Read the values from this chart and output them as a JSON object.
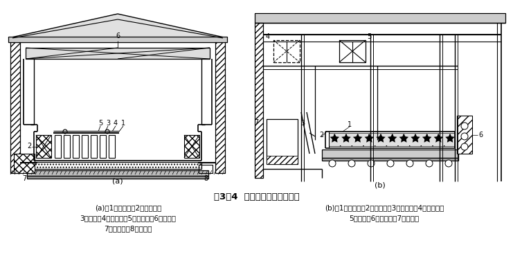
{
  "title": "图3－4  制冰间纵剖面和横断面",
  "label_a": "(a)",
  "label_b": "(b)",
  "caption_a_line1": "(a)：1－制冰池；2－蒸发器；",
  "caption_a_line2": "3－冰桶；4－冰桶架；5－起吊钩；6－吊车；",
  "caption_a_line3": "7－通风管；8－排水沟",
  "caption_b_line1": "(b)：1－制冰池；2－融冰池；3－倒冰架；4－注水器；",
  "caption_b_line2": "5－吊车；6－搅拌器；7－滑冰台",
  "bg_color": "#ffffff",
  "line_color": "#000000"
}
